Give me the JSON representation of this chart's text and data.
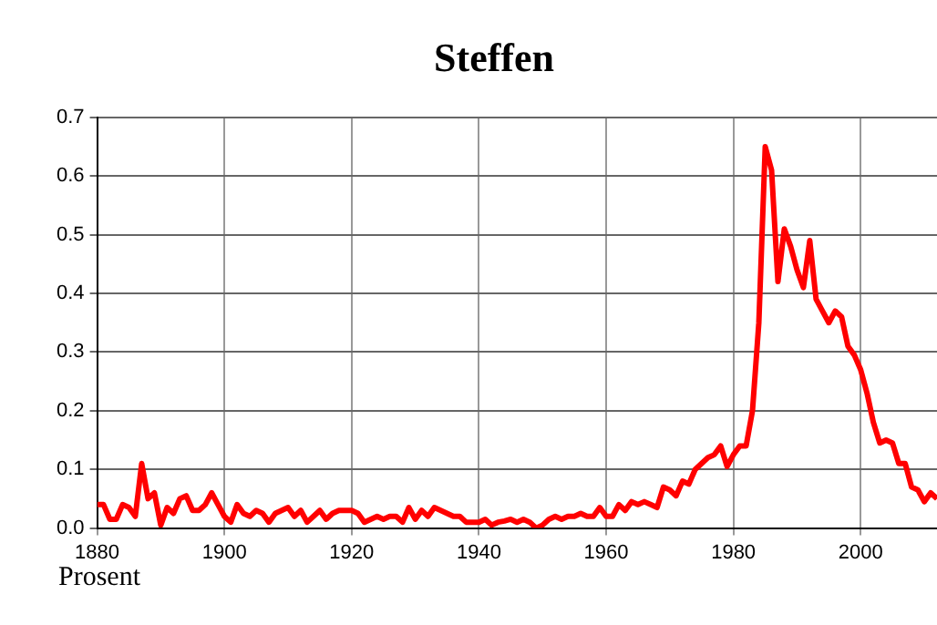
{
  "chart_data": {
    "type": "line",
    "title": "Steffen",
    "ylabel": "Prosent",
    "x": [
      1880,
      1881,
      1882,
      1883,
      1884,
      1885,
      1886,
      1887,
      1888,
      1889,
      1890,
      1891,
      1892,
      1893,
      1894,
      1895,
      1896,
      1897,
      1898,
      1899,
      1900,
      1901,
      1902,
      1903,
      1904,
      1905,
      1906,
      1907,
      1908,
      1909,
      1910,
      1911,
      1912,
      1913,
      1914,
      1915,
      1916,
      1917,
      1918,
      1919,
      1920,
      1921,
      1922,
      1923,
      1924,
      1925,
      1926,
      1927,
      1928,
      1929,
      1930,
      1931,
      1932,
      1933,
      1934,
      1935,
      1936,
      1937,
      1938,
      1939,
      1940,
      1941,
      1942,
      1943,
      1944,
      1945,
      1946,
      1947,
      1948,
      1949,
      1950,
      1951,
      1952,
      1953,
      1954,
      1955,
      1956,
      1957,
      1958,
      1959,
      1960,
      1961,
      1962,
      1963,
      1964,
      1965,
      1966,
      1967,
      1968,
      1969,
      1970,
      1971,
      1972,
      1973,
      1974,
      1975,
      1976,
      1977,
      1978,
      1979,
      1980,
      1981,
      1982,
      1983,
      1984,
      1985,
      1986,
      1987,
      1988,
      1989,
      1990,
      1991,
      1992,
      1993,
      1994,
      1995,
      1996,
      1997,
      1998,
      1999,
      2000,
      2001,
      2002,
      2003,
      2004,
      2005,
      2006,
      2007,
      2008,
      2009,
      2010,
      2011,
      2012
    ],
    "series": [
      {
        "color": "#ff0000",
        "values": [
          0.04,
          0.04,
          0.015,
          0.015,
          0.04,
          0.035,
          0.02,
          0.11,
          0.05,
          0.06,
          0.005,
          0.035,
          0.025,
          0.05,
          0.055,
          0.03,
          0.03,
          0.04,
          0.06,
          0.04,
          0.02,
          0.01,
          0.04,
          0.025,
          0.02,
          0.03,
          0.025,
          0.01,
          0.025,
          0.03,
          0.035,
          0.02,
          0.03,
          0.01,
          0.02,
          0.03,
          0.015,
          0.025,
          0.03,
          0.03,
          0.03,
          0.025,
          0.01,
          0.015,
          0.02,
          0.015,
          0.02,
          0.02,
          0.01,
          0.035,
          0.015,
          0.03,
          0.02,
          0.035,
          0.03,
          0.025,
          0.02,
          0.02,
          0.01,
          0.01,
          0.01,
          0.015,
          0.005,
          0.01,
          0.012,
          0.015,
          0.01,
          0.015,
          0.01,
          0.0,
          0.005,
          0.015,
          0.02,
          0.015,
          0.02,
          0.02,
          0.025,
          0.02,
          0.02,
          0.035,
          0.02,
          0.02,
          0.04,
          0.03,
          0.045,
          0.04,
          0.045,
          0.04,
          0.035,
          0.07,
          0.065,
          0.055,
          0.08,
          0.075,
          0.1,
          0.11,
          0.12,
          0.125,
          0.14,
          0.105,
          0.125,
          0.14,
          0.14,
          0.2,
          0.35,
          0.65,
          0.61,
          0.42,
          0.51,
          0.48,
          0.44,
          0.41,
          0.49,
          0.39,
          0.37,
          0.35,
          0.37,
          0.36,
          0.31,
          0.295,
          0.27,
          0.23,
          0.18,
          0.145,
          0.15,
          0.145,
          0.11,
          0.11,
          0.07,
          0.065,
          0.045,
          0.06,
          0.05
        ]
      }
    ],
    "xlim": [
      1880,
      2012
    ],
    "xticks": [
      1880,
      1900,
      1920,
      1940,
      1960,
      1980,
      2000
    ],
    "ylim": [
      0,
      0.7
    ],
    "yticks": [
      {
        "value": 0,
        "label": "0.0"
      },
      0.1,
      0.2,
      0.3,
      0.4,
      0.5,
      0.6,
      0.7
    ],
    "grid": true,
    "legend": false,
    "marker": "none",
    "line_style": "solid"
  }
}
